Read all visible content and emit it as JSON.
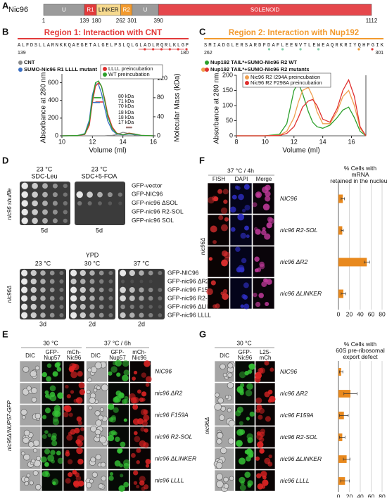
{
  "panels": {
    "a": {
      "letter": "A",
      "protein": "Nic96",
      "domains": [
        {
          "label": "U",
          "color": "#9b9b9b"
        },
        {
          "label": "R1",
          "color": "#e23b3b"
        },
        {
          "label": "LINKER",
          "color": "#f6d98e"
        },
        {
          "label": "R2",
          "color": "#f29a2e"
        },
        {
          "label": "U",
          "color": "#9b9b9b"
        },
        {
          "label": "SOLENOID",
          "color": "#e5474c"
        }
      ],
      "positions": [
        1,
        139,
        180,
        262,
        301,
        390,
        1112
      ]
    },
    "b": {
      "letter": "B"
    },
    "c": {
      "letter": "C"
    },
    "d": {
      "letter": "D",
      "side_top": "nic96 shuffle",
      "plates_top": [
        {
          "temp": "23 °C",
          "medium": "SDC-Leu",
          "days": "5d"
        },
        {
          "temp": "23 °C",
          "medium": "SDC+5-FOA",
          "days": "5d"
        }
      ],
      "strains_top": [
        "GFP-vector",
        "GFP-NIC96",
        "GFP-nic96 ΔSOL",
        "GFP-nic96 R2-SOL",
        "GFP-nic96 SOL"
      ],
      "medium_bottom": "YPD",
      "plates_bottom": [
        {
          "temp": "23 °C",
          "days": "3d"
        },
        {
          "temp": "30 °C",
          "days": "2d"
        },
        {
          "temp": "37 °C",
          "days": "2d"
        }
      ],
      "strains_bottom": [
        "GFP-NIC96",
        "GFP-nic96 ΔR2",
        "GFP-nic96 F159A",
        "GFP-nic96 R2-SOL",
        "GFP-nic96 ΔLINKER",
        "GFP-nic96 LLLL"
      ],
      "side_bottom": "nic96Δ"
    },
    "e": {
      "letter": "E",
      "conditions": [
        "30 °C",
        "37 °C / 6h"
      ],
      "channels": [
        [
          "DIC"
        ],
        [
          "GFP-",
          "Nup57"
        ],
        [
          "mCh-",
          "Nic96"
        ],
        [
          "DIC"
        ],
        [
          "GFP-",
          "Nup57"
        ],
        [
          "mCh-",
          "Nic96"
        ]
      ],
      "strains": [
        "NIC96",
        "nic96 ΔR2",
        "nic96 F159A",
        "nic96 R2-SOL",
        "nic96 ΔLINKER",
        "nic96 LLLL"
      ],
      "side": "nic96Δ/NUP57-GFP"
    },
    "f": {
      "letter": "F",
      "condition": "37 °C / 4h",
      "channels": [
        "FISH",
        "DAPI",
        "Merge"
      ],
      "side": "nic96Δ"
    },
    "g": {
      "letter": "G",
      "condition": "30 °C",
      "channels": [
        [
          "DIC"
        ],
        [
          "GFP-",
          "Nic96"
        ],
        [
          "L25-",
          "mCh"
        ]
      ],
      "side": "nic96Δ"
    }
  },
  "chart_data": [
    {
      "type": "line",
      "title": "Region 1: Interaction with CNT",
      "title_color": "#e23b3b",
      "sequence": "ALFDSLLARNKKQAEGETALGELPSLQLGLADLRQRLKLGP",
      "seq_range": [
        139,
        180
      ],
      "xlabel": "Volume (ml)",
      "ylabel": "Absorbance at 280 nm",
      "y2label": "Molecular Mass (kDa)",
      "xlim": [
        10,
        16
      ],
      "xticks": [
        10,
        12,
        14,
        16
      ],
      "ylim": [
        0,
        700
      ],
      "yticks": [
        0,
        200,
        400,
        600
      ],
      "y2lim": [
        0,
        130
      ],
      "y2ticks": [
        0,
        40,
        80,
        120
      ],
      "series": [
        {
          "name": "CNT",
          "color": "#8a8a8a",
          "x": [
            10,
            11,
            11.5,
            11.8,
            12,
            12.2,
            12.4,
            12.6,
            12.8,
            13,
            13.3,
            13.6,
            14,
            14.4,
            14.8,
            15.2,
            16
          ],
          "values": [
            0,
            0,
            0,
            0,
            0,
            0,
            0,
            0,
            0,
            2,
            5,
            15,
            40,
            25,
            8,
            2,
            0
          ]
        },
        {
          "name": "SUMO-Nic96 R1 LLLL mutant",
          "color": "#3a6fc4",
          "x": [
            10,
            11,
            11.5,
            11.8,
            12,
            12.2,
            12.4,
            12.6,
            12.8,
            13,
            13.3,
            13.6,
            14,
            14.4,
            14.8,
            15.2,
            16
          ],
          "values": [
            0,
            2,
            25,
            180,
            460,
            590,
            580,
            480,
            320,
            170,
            60,
            20,
            10,
            20,
            15,
            4,
            0
          ]
        },
        {
          "name": "LLLL preincubation",
          "color": "#e0302f",
          "x": [
            10,
            11,
            11.5,
            11.8,
            12,
            12.2,
            12.4,
            12.6,
            12.8,
            13,
            13.3,
            13.6,
            14,
            14.4,
            14.8,
            15.2,
            16
          ],
          "values": [
            0,
            2,
            15,
            120,
            380,
            560,
            600,
            560,
            420,
            250,
            100,
            30,
            12,
            30,
            20,
            5,
            0
          ]
        },
        {
          "name": "WT preincubation",
          "color": "#2ca02c",
          "x": [
            10,
            11,
            11.5,
            11.8,
            12,
            12.2,
            12.4,
            12.6,
            12.8,
            13,
            13.3,
            13.6,
            14,
            14.4,
            14.8,
            15.2,
            16
          ],
          "values": [
            0,
            2,
            20,
            150,
            420,
            600,
            620,
            560,
            400,
            220,
            80,
            25,
            12,
            25,
            18,
            5,
            0
          ]
        }
      ],
      "masses": {
        "values": [
          80,
          71,
          70,
          18,
          18,
          17
        ],
        "value_labels": [
          "80 kDa",
          "71 kDa",
          "70 kDa",
          "18 kDa",
          "18 kDa",
          "17 kDa"
        ],
        "colors": [
          "#2ca02c",
          "#e0302f",
          "#3a6fc4",
          "#2ca02c",
          "#e0302f",
          "#8a8a8a"
        ],
        "xranges": [
          [
            12.1,
            12.6
          ],
          [
            12.2,
            12.7
          ],
          [
            12.0,
            12.5
          ],
          [
            14.2,
            14.6
          ],
          [
            14.2,
            14.6
          ],
          [
            14.2,
            14.6
          ]
        ]
      }
    },
    {
      "type": "line",
      "title": "Region 2: Interaction with Nup192",
      "title_color": "#f29a2e",
      "sequence": "SMIADGLERSARDFDAFLEENVTLEWEAQRKRIYQHFGIK",
      "seq_range": [
        262,
        301
      ],
      "mutants_label": "Nup192 TAIL*+SUMO-Nic96 R2 mutants",
      "xlabel": "Volume (ml)",
      "ylabel": "Absorbance at 280 nm",
      "xlim": [
        8,
        17
      ],
      "xticks": [
        8,
        10,
        12,
        14,
        16
      ],
      "ylim": [
        0,
        200
      ],
      "yticks": [
        0,
        50,
        100,
        150,
        200
      ],
      "series": [
        {
          "name": "Nup192 TAIL*+SUMO-Nic96 R2 WT",
          "color": "#2ca02c",
          "x": [
            8,
            10,
            11,
            11.5,
            12,
            12.3,
            12.6,
            13,
            13.3,
            13.6,
            14,
            14.5,
            15,
            15.4,
            15.8,
            16.2,
            16.6,
            17
          ],
          "values": [
            0,
            0,
            5,
            40,
            150,
            175,
            140,
            80,
            45,
            30,
            25,
            35,
            60,
            85,
            95,
            60,
            15,
            0
          ]
        },
        {
          "name": "Nic96 R2 I294A preincubation",
          "color": "#f0a050",
          "x": [
            8,
            10,
            11,
            11.5,
            12,
            12.3,
            12.6,
            13,
            13.3,
            13.6,
            14,
            14.5,
            15,
            15.4,
            15.8,
            16.2,
            16.6,
            17
          ],
          "values": [
            0,
            0,
            2,
            15,
            60,
            110,
            150,
            160,
            130,
            80,
            40,
            40,
            80,
            130,
            150,
            100,
            25,
            0
          ]
        },
        {
          "name": "Nic96 R2 F298A preincubation",
          "color": "#e0302f",
          "x": [
            8,
            10,
            11,
            11.5,
            12,
            12.3,
            12.6,
            13,
            13.3,
            13.6,
            14,
            14.5,
            15,
            15.4,
            15.8,
            16.2,
            16.6,
            17
          ],
          "values": [
            0,
            0,
            1,
            8,
            30,
            60,
            95,
            115,
            120,
            100,
            55,
            45,
            90,
            150,
            185,
            130,
            30,
            0
          ]
        }
      ]
    },
    {
      "type": "hbar",
      "title": [
        "% Cells with",
        "mRNA",
        "retained in the nucleus"
      ],
      "color": "#e8891e",
      "categories": [
        "NIC96",
        "nic96 R2-SOL",
        "nic96 ΔR2",
        "nic96 ΔLINKER"
      ],
      "values": [
        8,
        7,
        52,
        9
      ],
      "errors": [
        3,
        2,
        5,
        4
      ],
      "xlim": [
        0,
        80
      ],
      "xticks": [
        0,
        20,
        40,
        60,
        80
      ],
      "grid": true
    },
    {
      "type": "hbar",
      "title": [
        "% Cells with",
        "60S pre-ribosomal",
        "export defect"
      ],
      "color": "#e8891e",
      "categories": [
        "NIC96",
        "nic96 ΔR2",
        "nic96 F159A",
        "nic96 R2-SOL",
        "nic96 ΔLINKER",
        "nic96 LLLL"
      ],
      "values": [
        5,
        22,
        10,
        7,
        15,
        12
      ],
      "errors": [
        3,
        12,
        8,
        5,
        6,
        8
      ],
      "xlim": [
        0,
        80
      ],
      "xticks": [
        0,
        20,
        40,
        60,
        80
      ],
      "grid": true
    }
  ]
}
